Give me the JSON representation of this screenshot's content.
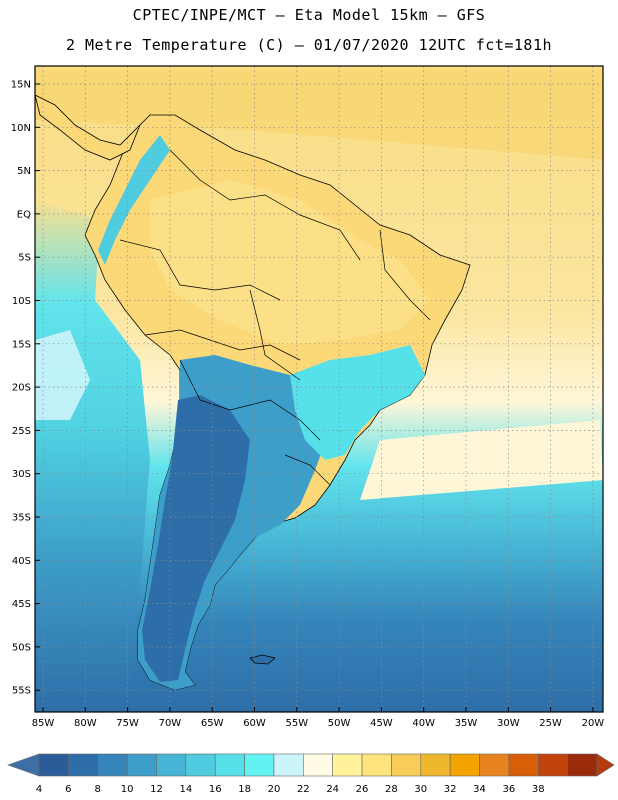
{
  "header": {
    "line1": "CPTEC/INPE/MCT –  Eta Model 15km – GFS",
    "line2": "2 Metre Temperature (C) – 01/07/2020 12UTC fct=181h"
  },
  "axes": {
    "lat_labels": [
      "15N",
      "10N",
      "5N",
      "EQ",
      "5S",
      "10S",
      "15S",
      "20S",
      "25S",
      "30S",
      "35S",
      "40S",
      "45S",
      "50S",
      "55S"
    ],
    "lon_labels": [
      "85W",
      "80W",
      "75W",
      "70W",
      "65W",
      "60W",
      "55W",
      "50W",
      "45W",
      "40W",
      "35W",
      "30W",
      "25W",
      "20W"
    ]
  },
  "legend": {
    "ticks": [
      "4",
      "6",
      "8",
      "10",
      "12",
      "14",
      "16",
      "18",
      "20",
      "22",
      "24",
      "26",
      "28",
      "30",
      "32",
      "34",
      "36",
      "38"
    ],
    "colors": [
      "#2b5c9a",
      "#2e6ea8",
      "#3585ba",
      "#3d9ec9",
      "#47b6d6",
      "#50cce0",
      "#55e0ea",
      "#62f2f2",
      "#ccf4fb",
      "#fffbe4",
      "#fff49c",
      "#ffe47d",
      "#f7cd57",
      "#eeb72e",
      "#f2a300",
      "#e7841f",
      "#d85e08",
      "#c1420a",
      "#9b2a0a"
    ],
    "under_color": "#3d6ea6",
    "over_color": "#b53a0c"
  },
  "colors": {
    "ocean_tropical": "#fbe091",
    "ocean_mid": "#47b6d6",
    "ocean_south": "#2e6ea8",
    "land_warm": "#fbd978",
    "land_cool": "#3585ba",
    "coast": "#000000",
    "grid": "#8a8a8a"
  }
}
